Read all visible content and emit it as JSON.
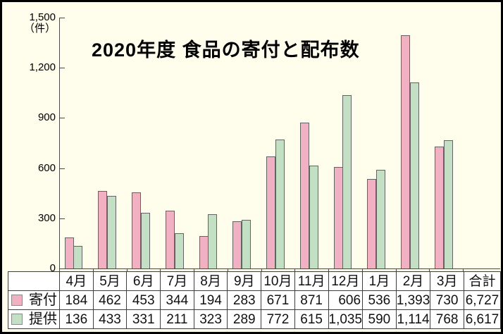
{
  "title": "2020年度 食品の寄付と配布数",
  "y_axis": {
    "unit": "（件）",
    "tick_values": [
      0,
      300,
      600,
      900,
      1200,
      1500
    ],
    "tick_labels": [
      "0",
      "300",
      "600",
      "900",
      "1,200",
      "1,500"
    ]
  },
  "chart_data": {
    "type": "bar",
    "title": "2020年度 食品の寄付と配布数",
    "categories": [
      "4月",
      "5月",
      "6月",
      "7月",
      "8月",
      "9月",
      "10月",
      "11月",
      "12月",
      "1月",
      "2月",
      "3月"
    ],
    "series": [
      {
        "name": "寄付",
        "color": "#F2B1C2",
        "values": [
          184,
          462,
          453,
          344,
          194,
          283,
          671,
          871,
          606,
          536,
          1393,
          730
        ],
        "total": 6727
      },
      {
        "name": "提供",
        "color": "#C3DFC4",
        "values": [
          136,
          433,
          331,
          211,
          323,
          289,
          772,
          615,
          1035,
          590,
          1114,
          768
        ],
        "total": 6617
      }
    ],
    "ylabel": "（件）",
    "ylim": [
      0,
      1500
    ],
    "ytick_interval": 300,
    "grid": false,
    "legend_position": "table-below"
  },
  "table": {
    "corner_label": "",
    "columns": [
      "4月",
      "5月",
      "6月",
      "7月",
      "8月",
      "9月",
      "10月",
      "11月",
      "12月",
      "1月",
      "2月",
      "3月",
      "合計"
    ],
    "rows": [
      {
        "label": "寄付",
        "swatch_color": "#F2B1C2",
        "cells": [
          "184",
          "462",
          "453",
          "344",
          "194",
          "283",
          "671",
          "871",
          "606",
          "536",
          "1,393",
          "730",
          "6,727"
        ]
      },
      {
        "label": "提供",
        "swatch_color": "#C3DFC4",
        "cells": [
          "136",
          "433",
          "331",
          "211",
          "323",
          "289",
          "772",
          "615",
          "1,035",
          "590",
          "1,114",
          "768",
          "6,617"
        ]
      }
    ]
  },
  "colors": {
    "background": "#FFFDEC",
    "frame_border": "#000000",
    "axis": "#4a4a4a",
    "bar_border": "#636363",
    "table_border": "#3d3d3d",
    "table_cell_bg": "#ffffff",
    "donation_pink": "#F2B1C2",
    "provision_green": "#C3DFC4"
  }
}
